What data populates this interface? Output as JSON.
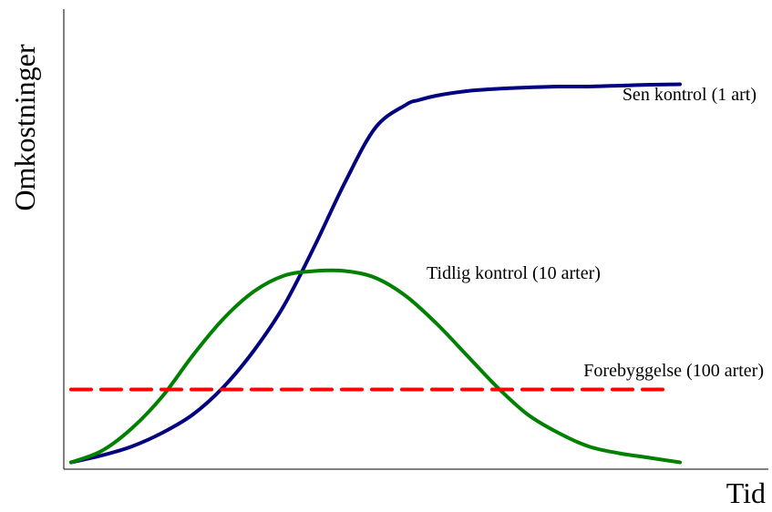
{
  "chart_data": {
    "type": "line",
    "xlabel": "Tid",
    "ylabel": "Omkostninger",
    "xlim": [
      0,
      100
    ],
    "ylim": [
      0,
      100
    ],
    "grid": false,
    "series": [
      {
        "name": "Sen kontrol (1 art)",
        "color": "#000080",
        "style": "solid",
        "x": [
          0,
          5,
          10,
          15,
          20,
          25,
          30,
          35,
          40,
          45,
          50,
          55,
          57,
          60,
          65,
          70,
          75,
          80,
          85,
          90,
          95,
          100
        ],
        "y": [
          0.5,
          2,
          4,
          7,
          11,
          17,
          25,
          35,
          48,
          62,
          74,
          79,
          80,
          81,
          82,
          82.5,
          82.8,
          83,
          83,
          83.2,
          83.4,
          83.5
        ]
      },
      {
        "name": "Tidlig kontrol (10 arter)",
        "color": "#008000",
        "style": "solid",
        "x": [
          0,
          5,
          10,
          15,
          20,
          25,
          30,
          35,
          40,
          45,
          50,
          55,
          60,
          65,
          70,
          75,
          80,
          85,
          90,
          95,
          100
        ],
        "y": [
          0.5,
          3,
          8,
          15,
          24,
          32,
          38,
          41.5,
          42.5,
          42.5,
          41,
          37,
          31,
          24,
          17,
          11,
          7,
          4,
          2.5,
          1.5,
          0.5
        ]
      },
      {
        "name": "Forebyggelse (100 arter)",
        "color": "#ff0000",
        "style": "dashed",
        "x": [
          0,
          98
        ],
        "y": [
          16.5,
          16.5
        ]
      }
    ]
  }
}
